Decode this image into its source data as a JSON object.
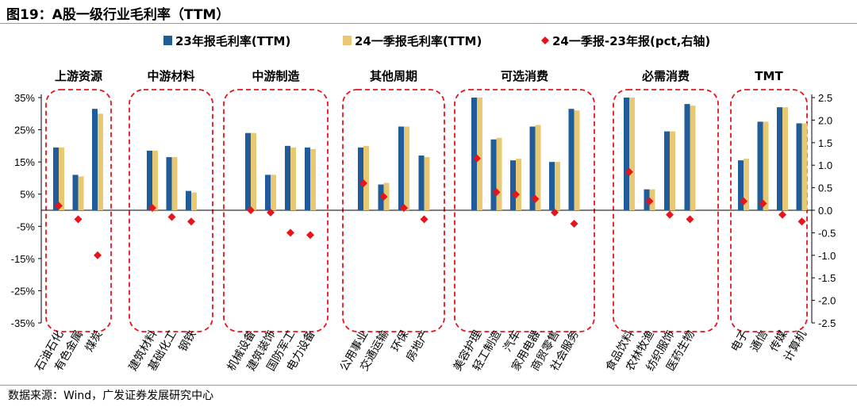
{
  "figure_label": "图19：",
  "title": "A股一级行业毛利率（TTM）",
  "source": "数据来源：Wind，广发证券发展研究中心",
  "colors": {
    "series_2023": "#1F5C99",
    "series_2024q1": "#E8C872",
    "diff": "#E8141C",
    "group_box": "#E8141C"
  },
  "chart_data": {
    "type": "bar",
    "title": "A股一级行业毛利率（TTM）",
    "categories": [
      "石油石化",
      "有色金属",
      "煤炭",
      "建筑材料",
      "基础化工",
      "钢铁",
      "机械设备",
      "建筑装饰",
      "国防军工",
      "电力设备",
      "公用事业",
      "交通运输",
      "环保",
      "房地产",
      "美容护理",
      "轻工制造",
      "汽车",
      "家用电器",
      "商贸零售",
      "社会服务",
      "食品饮料",
      "农林牧渔",
      "纺织服饰",
      "医药生物",
      "电子",
      "通信",
      "传媒",
      "计算机"
    ],
    "groups": [
      {
        "name": "上游资源",
        "count": 3
      },
      {
        "name": "中游材料",
        "count": 3
      },
      {
        "name": "中游制造",
        "count": 4
      },
      {
        "name": "其他周期",
        "count": 4
      },
      {
        "name": "可选消费",
        "count": 6
      },
      {
        "name": "必需消费",
        "count": 4
      },
      {
        "name": "TMT",
        "count": 4
      }
    ],
    "series": [
      {
        "name": "23年报毛利率(TTM)",
        "axis": "left",
        "values": [
          19.5,
          11,
          31.5,
          18.5,
          16.5,
          6,
          24,
          11,
          20,
          19.5,
          19.5,
          8,
          26,
          17,
          35,
          22,
          15.5,
          26,
          15,
          31.5,
          35,
          6.5,
          24.5,
          33,
          15.5,
          27.5,
          32,
          27
        ]
      },
      {
        "name": "24一季报毛利率(TTM)",
        "axis": "left",
        "values": [
          19.5,
          10.5,
          30,
          18.5,
          16.5,
          5.5,
          24,
          11,
          19.5,
          19,
          20,
          8.5,
          26,
          16.5,
          35,
          22.5,
          16,
          26.5,
          15,
          31,
          35,
          6.5,
          24.5,
          32.5,
          16,
          27.5,
          32,
          27
        ]
      },
      {
        "name": "24一季报-23年报(pct,右轴)",
        "axis": "right",
        "values": [
          0.1,
          -0.2,
          -1.0,
          0.05,
          -0.15,
          -0.25,
          0.0,
          -0.05,
          -0.5,
          -0.55,
          0.6,
          0.3,
          0.05,
          -0.2,
          1.15,
          0.4,
          0.35,
          0.25,
          -0.05,
          -0.3,
          0.85,
          0.2,
          -0.1,
          -0.2,
          0.2,
          0.15,
          -0.1,
          -0.25
        ]
      }
    ],
    "ylim_left": [
      -35,
      35
    ],
    "yticks_left": [
      "35%",
      "25%",
      "15%",
      "5%",
      "-5%",
      "-15%",
      "-25%",
      "-35%"
    ],
    "ylim_right": [
      -2.5,
      2.5
    ],
    "yticks_right": [
      "2.5",
      "2.0",
      "1.5",
      "1.0",
      "0.5",
      "0.0",
      "-0.5",
      "-1.0",
      "-1.5",
      "-2.0",
      "-2.5"
    ],
    "legend": [
      "23年报毛利率(TTM)",
      "24一季报毛利率(TTM)",
      "24一季报-23年报(pct,右轴)"
    ],
    "legend_position": "top"
  }
}
